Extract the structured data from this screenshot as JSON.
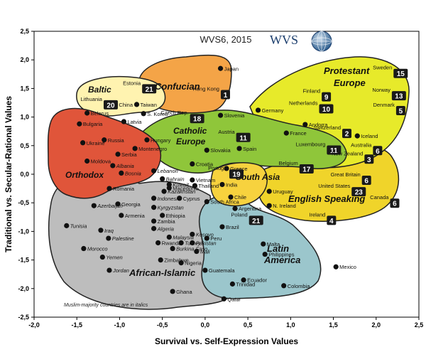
{
  "chart_data": {
    "type": "scatter",
    "title": "WVS6, 2015",
    "logo_text": "WVS",
    "xlabel": "Survival vs. Self-Expression Values",
    "ylabel": "Traditional vs. Secular-Rational Values",
    "xlim": [
      -2.0,
      2.5
    ],
    "ylim": [
      -2.5,
      2.5
    ],
    "x_ticks": [
      "-2,0",
      "-1,5",
      "-1,0",
      "-0,5",
      "0,0",
      "0,5",
      "1,0",
      "1,5",
      "2,0",
      "2,5"
    ],
    "y_ticks": [
      "2,5",
      "2,0",
      "1,5",
      "1,0",
      "0,5",
      "0,0",
      "-0,5",
      "-1,0",
      "-1,5",
      "-2,0",
      "-2,5"
    ],
    "grid": false,
    "footnote": "Muslim-majority countries are in italics",
    "regions": [
      {
        "name": "Baltic",
        "color": "#fff3b0",
        "badge": "21",
        "badge_label": "Estonia"
      },
      {
        "name": "Confucian",
        "color": "#f4a447",
        "badge": "1",
        "badge_label": "Hong Kong"
      },
      {
        "name": "Protestant Europe",
        "color": "#e7ea2a",
        "badge": "15",
        "badge_label": "Sweden"
      },
      {
        "name": "Catholic Europe",
        "color": "#8fc63a",
        "badge": "11",
        "badge_label": "Austria"
      },
      {
        "name": "Orthodox",
        "color": "#e0553a",
        "badge": "20",
        "badge_label": "Lithuania"
      },
      {
        "name": "South Asia",
        "color": "#f7d23e",
        "badge": "19",
        "badge_label": "Portugal"
      },
      {
        "name": "English Speaking",
        "color": "#f0d42a",
        "badge": "6",
        "badge_label": "Canada"
      },
      {
        "name": "Latin America",
        "color": "#9bc6cc",
        "badge": "21",
        "badge_label": "Poland"
      },
      {
        "name": "African-Islamic",
        "color": "#bdbdbd",
        "badge": "",
        "badge_label": ""
      }
    ],
    "badges": [
      {
        "label": "Estonia",
        "value": "21",
        "x": -0.72,
        "y": 1.45
      },
      {
        "label": "Lithuania",
        "value": "20",
        "x": -1.17,
        "y": 1.17
      },
      {
        "label": "Hong Kong",
        "value": "1",
        "x": 0.2,
        "y": 1.35
      },
      {
        "label": "Czech Rep.",
        "value": "18",
        "x": -0.16,
        "y": 0.93
      },
      {
        "label": "Austria",
        "value": "11",
        "x": 0.38,
        "y": 0.6
      },
      {
        "label": "Luxembourg",
        "value": "11",
        "x": 1.44,
        "y": 0.38
      },
      {
        "label": "Finland",
        "value": "9",
        "x": 1.38,
        "y": 1.31
      },
      {
        "label": "Netherlands",
        "value": "10",
        "x": 1.35,
        "y": 1.1
      },
      {
        "label": "Sweden",
        "value": "15",
        "x": 2.22,
        "y": 1.72
      },
      {
        "label": "Norway",
        "value": "13",
        "x": 2.2,
        "y": 1.33
      },
      {
        "label": "Denmark",
        "value": "5",
        "x": 2.25,
        "y": 1.07
      },
      {
        "label": "Switzerland",
        "value": "2",
        "x": 1.62,
        "y": 0.67
      },
      {
        "label": "Australia",
        "value": "6",
        "x": 1.98,
        "y": 0.37
      },
      {
        "label": "New Zealand",
        "value": "3",
        "x": 1.88,
        "y": 0.22
      },
      {
        "label": "Belgium",
        "value": "17",
        "x": 1.12,
        "y": 0.05
      },
      {
        "label": "Portugal",
        "value": "19",
        "x": 0.3,
        "y": -0.04
      },
      {
        "label": "Great Britain",
        "value": "6",
        "x": 1.85,
        "y": -0.15
      },
      {
        "label": "United States",
        "value": "23",
        "x": 1.73,
        "y": -0.35
      },
      {
        "label": "Canada",
        "value": "6",
        "x": 2.18,
        "y": -0.55
      },
      {
        "label": "Ireland",
        "value": "4",
        "x": 1.44,
        "y": -0.85
      },
      {
        "label": "Poland",
        "value": "21",
        "x": 0.53,
        "y": -0.85
      }
    ],
    "points": [
      {
        "name": "Japan",
        "x": 0.18,
        "y": 1.85,
        "italic": false
      },
      {
        "name": "China",
        "x": -1.05,
        "y": 1.22,
        "italic": false
      },
      {
        "name": "Taiwan",
        "x": -0.8,
        "y": 1.22,
        "italic": false
      },
      {
        "name": "S. Korea",
        "x": -0.72,
        "y": 1.06,
        "italic": false
      },
      {
        "name": "Latvia",
        "x": -0.95,
        "y": 0.92,
        "italic": false
      },
      {
        "name": "Belarus",
        "x": -1.38,
        "y": 1.07,
        "italic": false
      },
      {
        "name": "Bulgaria",
        "x": -1.47,
        "y": 0.88,
        "italic": false
      },
      {
        "name": "Ukraine",
        "x": -1.43,
        "y": 0.55,
        "italic": false
      },
      {
        "name": "Russia",
        "x": -1.18,
        "y": 0.6,
        "italic": false
      },
      {
        "name": "Moldova",
        "x": -1.38,
        "y": 0.23,
        "italic": false
      },
      {
        "name": "Serbia",
        "x": -1.02,
        "y": 0.35,
        "italic": false
      },
      {
        "name": "Montenegro",
        "x": -0.82,
        "y": 0.45,
        "italic": false
      },
      {
        "name": "Albania",
        "x": -1.08,
        "y": 0.15,
        "italic": true
      },
      {
        "name": "Bosnia",
        "x": -0.98,
        "y": 0.02,
        "italic": true
      },
      {
        "name": "Romania",
        "x": -1.12,
        "y": -0.25,
        "italic": false
      },
      {
        "name": "Hungary",
        "x": -0.68,
        "y": 0.6,
        "italic": false
      },
      {
        "name": "Slovenia",
        "x": 0.18,
        "y": 1.03,
        "italic": false
      },
      {
        "name": "Slovakia",
        "x": 0.02,
        "y": 0.42,
        "italic": false
      },
      {
        "name": "Germany",
        "x": 0.62,
        "y": 1.12,
        "italic": false
      },
      {
        "name": "France",
        "x": 0.95,
        "y": 0.72,
        "italic": false
      },
      {
        "name": "Andorra",
        "x": 1.17,
        "y": 0.87,
        "italic": false
      },
      {
        "name": "Iceland",
        "x": 1.78,
        "y": 0.67,
        "italic": false
      },
      {
        "name": "Spain",
        "x": 0.4,
        "y": 0.45,
        "italic": false
      },
      {
        "name": "Croatia",
        "x": -0.15,
        "y": 0.18,
        "italic": false
      },
      {
        "name": "Greece",
        "x": 0.25,
        "y": 0.1,
        "italic": false
      },
      {
        "name": "Lebanon",
        "x": -0.6,
        "y": 0.06,
        "italic": true
      },
      {
        "name": "Bahrain",
        "x": -0.5,
        "y": -0.08,
        "italic": true
      },
      {
        "name": "Kuwait",
        "x": -0.42,
        "y": -0.18,
        "italic": true
      },
      {
        "name": "Kazakhstan",
        "x": -0.48,
        "y": -0.3,
        "italic": true
      },
      {
        "name": "Indonesia",
        "x": -0.6,
        "y": -0.42,
        "italic": true
      },
      {
        "name": "Macedonia",
        "x": -0.42,
        "y": -0.24,
        "italic": false
      },
      {
        "name": "Cyprus",
        "x": -0.3,
        "y": -0.42,
        "italic": false
      },
      {
        "name": "Vietnam",
        "x": -0.15,
        "y": -0.1,
        "italic": false
      },
      {
        "name": "Thailand",
        "x": -0.12,
        "y": -0.2,
        "italic": false
      },
      {
        "name": "India",
        "x": 0.2,
        "y": -0.18,
        "italic": false
      },
      {
        "name": "South Africa",
        "x": 0.02,
        "y": -0.48,
        "italic": false
      },
      {
        "name": "Chile",
        "x": 0.3,
        "y": -0.4,
        "italic": false
      },
      {
        "name": "Argentina",
        "x": 0.35,
        "y": -0.6,
        "italic": false
      },
      {
        "name": "Brazil",
        "x": 0.2,
        "y": -0.92,
        "italic": false
      },
      {
        "name": "Uruguay",
        "x": 0.75,
        "y": -0.3,
        "italic": false
      },
      {
        "name": "N. Ireland",
        "x": 0.75,
        "y": -0.55,
        "italic": false
      },
      {
        "name": "Azerbaijan",
        "x": -1.3,
        "y": -0.55,
        "italic": true
      },
      {
        "name": "Georgia",
        "x": -1.02,
        "y": -0.52,
        "italic": false
      },
      {
        "name": "Armenia",
        "x": -0.98,
        "y": -0.72,
        "italic": false
      },
      {
        "name": "Kyrgyzstan",
        "x": -0.6,
        "y": -0.58,
        "italic": true
      },
      {
        "name": "Ethiopia",
        "x": -0.5,
        "y": -0.72,
        "italic": false
      },
      {
        "name": "Zambia",
        "x": -0.6,
        "y": -0.82,
        "italic": false
      },
      {
        "name": "Algeria",
        "x": -0.6,
        "y": -0.95,
        "italic": true
      },
      {
        "name": "Tunisia",
        "x": -1.62,
        "y": -0.9,
        "italic": true
      },
      {
        "name": "Iraq",
        "x": -1.22,
        "y": -0.98,
        "italic": true
      },
      {
        "name": "Palestine",
        "x": -1.13,
        "y": -1.12,
        "italic": true
      },
      {
        "name": "Morocco",
        "x": -1.42,
        "y": -1.3,
        "italic": true
      },
      {
        "name": "Yemen",
        "x": -1.2,
        "y": -1.45,
        "italic": true
      },
      {
        "name": "Jordan",
        "x": -1.12,
        "y": -1.68,
        "italic": true
      },
      {
        "name": "Malaysia",
        "x": -0.42,
        "y": -1.1,
        "italic": true
      },
      {
        "name": "Turkey",
        "x": -0.28,
        "y": -1.2,
        "italic": true
      },
      {
        "name": "Rwanda",
        "x": -0.55,
        "y": -1.2,
        "italic": false
      },
      {
        "name": "Burkina Faso",
        "x": -0.38,
        "y": -1.3,
        "italic": true
      },
      {
        "name": "Kosovo",
        "x": -0.15,
        "y": -1.05,
        "italic": true
      },
      {
        "name": "Pakistan",
        "x": -0.15,
        "y": -1.2,
        "italic": true
      },
      {
        "name": "Mali",
        "x": -0.1,
        "y": -1.35,
        "italic": true
      },
      {
        "name": "Peru",
        "x": 0.02,
        "y": -1.12,
        "italic": false
      },
      {
        "name": "Zimbabwe",
        "x": -0.52,
        "y": -1.5,
        "italic": false
      },
      {
        "name": "Nigeria",
        "x": -0.28,
        "y": -1.55,
        "italic": false
      },
      {
        "name": "Ghana",
        "x": -0.38,
        "y": -2.05,
        "italic": false
      },
      {
        "name": "Qatar",
        "x": 0.22,
        "y": -2.18,
        "italic": true
      },
      {
        "name": "Trinidad",
        "x": 0.32,
        "y": -1.92,
        "italic": false
      },
      {
        "name": "Guatemala",
        "x": 0.0,
        "y": -1.68,
        "italic": false
      },
      {
        "name": "Malta",
        "x": 0.68,
        "y": -1.22,
        "italic": false
      },
      {
        "name": "Philippines",
        "x": 0.7,
        "y": -1.4,
        "italic": false
      },
      {
        "name": "Ecuador",
        "x": 0.45,
        "y": -1.85,
        "italic": false
      },
      {
        "name": "Colombia",
        "x": 0.92,
        "y": -1.95,
        "italic": false
      },
      {
        "name": "Mexico",
        "x": 1.53,
        "y": -1.62,
        "italic": false
      }
    ]
  }
}
